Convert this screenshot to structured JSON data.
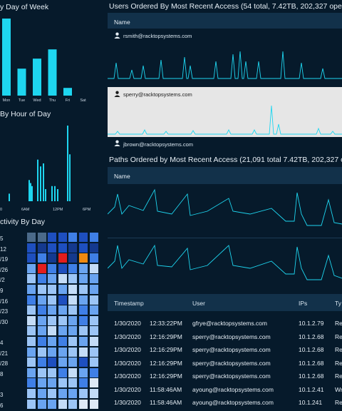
{
  "dow": {
    "title": "y Day of Week",
    "labels": [
      "Mon",
      "Tue",
      "Wed",
      "Thu",
      "Fri",
      "Sat"
    ],
    "values": [
      100,
      35,
      48,
      60,
      10,
      0
    ]
  },
  "hod": {
    "title": "By Hour of Day",
    "ticks": [
      "0",
      "6AM",
      "12PM",
      "6PM"
    ],
    "values": [
      0,
      0,
      0,
      0,
      0,
      0,
      0,
      0,
      0,
      0,
      0,
      0,
      0,
      0,
      0,
      0,
      0,
      0,
      0,
      0,
      0,
      0,
      0,
      0,
      0,
      0,
      0,
      0,
      0,
      0,
      0,
      0,
      0,
      0,
      0,
      0,
      0,
      0,
      0,
      0,
      0,
      0,
      0,
      0,
      0,
      0,
      0,
      0,
      0,
      0,
      0,
      0,
      0,
      0,
      0,
      0,
      0,
      0,
      0,
      0,
      0,
      0,
      0,
      0,
      0,
      0,
      0,
      0,
      0,
      0,
      0,
      0,
      0,
      0,
      0,
      0,
      0,
      0,
      0,
      0,
      0,
      0
    ]
  },
  "activity": {
    "title": "ctivity By Day",
    "row_labels": [
      "5",
      "12",
      "/19",
      "/26",
      "/2",
      "9",
      "/16",
      "/23",
      "/30",
      "",
      "4",
      "/21",
      "/28",
      "8",
      "",
      "3",
      "6"
    ]
  },
  "users_panel": {
    "title": "Users Ordered By Most Recent Access (54 total, 7.42TB, 202,327 opera",
    "header": "Name",
    "users": [
      "rsmith@racktopsystems.com",
      "sperry@racktopsystems.com",
      "jbrown@racktopsystems.com"
    ]
  },
  "paths_panel": {
    "title": "Paths Ordered by Most Recent Access (21,091 total 7.42TB, 202,327 op",
    "header": "Name"
  },
  "table": {
    "headers": {
      "timestamp": "Timestamp",
      "user": "User",
      "ips": "IPs",
      "type": "Ty"
    },
    "rows": [
      {
        "date": "1/30/2020",
        "time": "12:33:22PM",
        "user": "gfrye@racktopsystems.com",
        "ip": "10.1.2.79",
        "type": "Re"
      },
      {
        "date": "1/30/2020",
        "time": "12:16:29PM",
        "user": "sperry@racktopsystems.com",
        "ip": "10.1.2.68",
        "type": "Re"
      },
      {
        "date": "1/30/2020",
        "time": "12:16:29PM",
        "user": "sperry@racktopsystems.com",
        "ip": "10.1.2.68",
        "type": "Re"
      },
      {
        "date": "1/30/2020",
        "time": "12:16:29PM",
        "user": "sperry@racktopsystems.com",
        "ip": "10.1.2.68",
        "type": "Re"
      },
      {
        "date": "1/30/2020",
        "time": "12:16:29PM",
        "user": "sperry@racktopsystems.com",
        "ip": "10.1.2.68",
        "type": "Re"
      },
      {
        "date": "1/30/2020",
        "time": "11:58:46AM",
        "user": "ayoung@racktopsystems.com",
        "ip": "10.1.2.41",
        "type": "Wr"
      },
      {
        "date": "1/30/2020",
        "time": "11:58:46AM",
        "user": "ayoung@racktopsystems.com",
        "ip": "10.1.241",
        "type": "Re"
      }
    ]
  },
  "colors": {
    "accent": "#1ed6f0",
    "bg": "#061a2b",
    "header": "#12314a",
    "selected": "#e6e6e6"
  }
}
